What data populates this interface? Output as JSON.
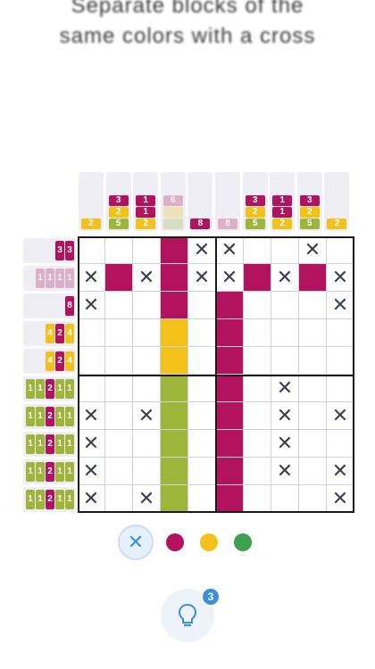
{
  "instruction": {
    "line1": "Separate blocks of the",
    "line2": "same colors with a cross"
  },
  "colors": {
    "magenta": "#b3125e",
    "yellow": "#f2c21a",
    "green": "#9eb53a",
    "accent": "#3b8fe0"
  },
  "column_clues": [
    [
      [
        "y",
        "2"
      ]
    ],
    [
      [
        "m",
        "3"
      ],
      [
        "y",
        "2"
      ],
      [
        "g",
        "5"
      ]
    ],
    [
      [
        "m",
        "1"
      ],
      [
        "m",
        "1"
      ],
      [
        "y",
        "2"
      ]
    ],
    [
      [
        "m",
        "6",
        "faded"
      ],
      [
        "y",
        "",
        "faded"
      ],
      [
        "g",
        "",
        "faded"
      ]
    ],
    [
      [
        "m",
        "8"
      ]
    ],
    [
      [
        "m",
        "8",
        "faded"
      ]
    ],
    [
      [
        "m",
        "3"
      ],
      [
        "y",
        "2"
      ],
      [
        "g",
        "5"
      ]
    ],
    [
      [
        "m",
        "1"
      ],
      [
        "m",
        "1"
      ],
      [
        "y",
        "2"
      ]
    ],
    [
      [
        "m",
        "3"
      ],
      [
        "y",
        "2"
      ],
      [
        "g",
        "5"
      ]
    ],
    [
      [
        "y",
        "2"
      ]
    ]
  ],
  "row_clues": [
    [
      [
        "m",
        "3"
      ],
      [
        "m",
        "3"
      ]
    ],
    [
      [
        "m",
        "1",
        "faded"
      ],
      [
        "m",
        "1",
        "faded"
      ],
      [
        "m",
        "1",
        "faded"
      ],
      [
        "m",
        "1",
        "faded"
      ]
    ],
    [
      [
        "m",
        "8"
      ]
    ],
    [
      [
        "y",
        "4"
      ],
      [
        "m",
        "2"
      ],
      [
        "y",
        "4"
      ]
    ],
    [
      [
        "y",
        "4"
      ],
      [
        "m",
        "2"
      ],
      [
        "y",
        "4"
      ]
    ],
    [
      [
        "g",
        "1"
      ],
      [
        "g",
        "1"
      ],
      [
        "m",
        "2"
      ],
      [
        "g",
        "1"
      ],
      [
        "g",
        "1"
      ]
    ],
    [
      [
        "g",
        "1"
      ],
      [
        "g",
        "1"
      ],
      [
        "m",
        "2"
      ],
      [
        "g",
        "1"
      ],
      [
        "g",
        "1"
      ]
    ],
    [
      [
        "g",
        "1"
      ],
      [
        "g",
        "1"
      ],
      [
        "m",
        "2"
      ],
      [
        "g",
        "1"
      ],
      [
        "g",
        "1"
      ]
    ],
    [
      [
        "g",
        "1"
      ],
      [
        "g",
        "1"
      ],
      [
        "m",
        "2"
      ],
      [
        "g",
        "1"
      ],
      [
        "g",
        "1"
      ]
    ],
    [
      [
        "g",
        "1"
      ],
      [
        "g",
        "1"
      ],
      [
        "m",
        "2"
      ],
      [
        "g",
        "1"
      ],
      [
        "g",
        "1"
      ]
    ]
  ],
  "board": [
    "...m|x|x..x",
    "xmxm|x|xmxmx",
    "x..m|.|m...x",
    "...y|.|m....",
    "...y|.|m....",
    "...g|.|m.x..",
    "x.xg|.|m.x.x",
    "x..g|.|m.x..",
    "x..g|.|m.x.x",
    "x.xg|.|m...x"
  ],
  "palette": {
    "cross_label": "✕",
    "swatches": [
      "magenta",
      "yellow",
      "green"
    ]
  },
  "hint": {
    "count": "3"
  }
}
